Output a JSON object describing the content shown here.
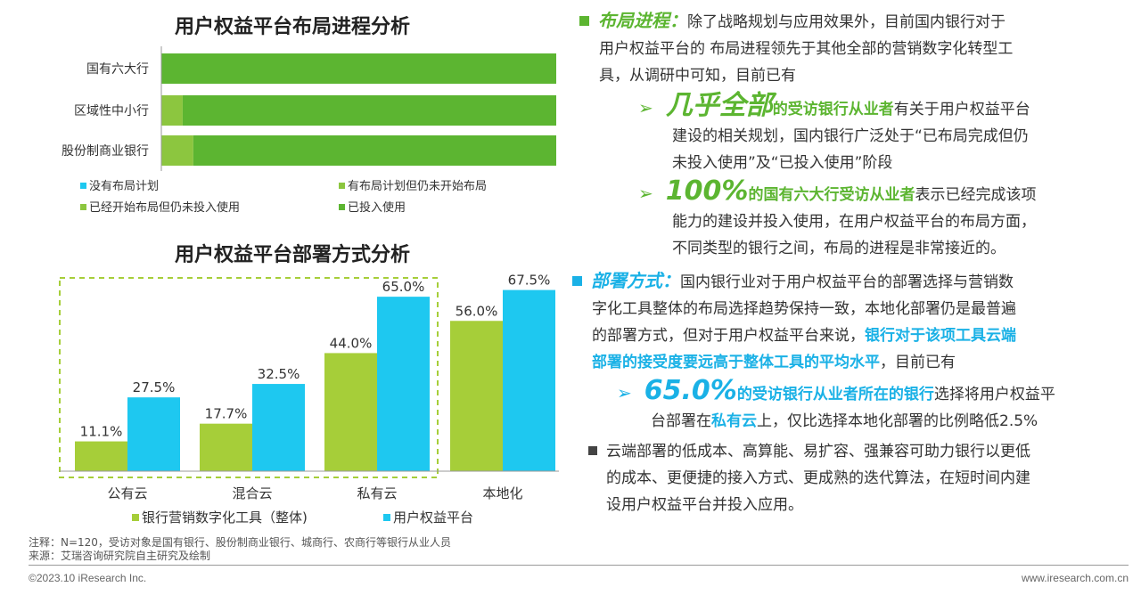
{
  "colors": {
    "green_light": "#8cc63f",
    "green_dark": "#5cb531",
    "lime": "#a6ce39",
    "blue": "#1ec8f0",
    "dashed_border": "#a6ce39"
  },
  "chart_data": [
    {
      "type": "bar",
      "orientation": "horizontal-stacked",
      "title": "用户权益平台布局进程分析",
      "categories": [
        "国有六大行",
        "区域性中小行",
        "股份制商业银行"
      ],
      "series": [
        {
          "name": "没有布局计划",
          "color": "#1ec8f0",
          "values": [
            0,
            0,
            0
          ]
        },
        {
          "name": "有布局计划但仍未开始布局",
          "color": "#8cc63f",
          "values": [
            0,
            0,
            0
          ]
        },
        {
          "name": "已经开始布局但仍未投入使用",
          "color": "#8cc63f",
          "values": [
            0,
            5.4,
            8.1
          ]
        },
        {
          "name": "已投入使用",
          "color": "#5cb531",
          "values": [
            100,
            94.6,
            91.9
          ]
        }
      ],
      "xlim": [
        0,
        100
      ],
      "grid": false
    },
    {
      "type": "bar",
      "title": "用户权益平台部署方式分析",
      "categories": [
        "公有云",
        "混合云",
        "私有云",
        "本地化"
      ],
      "series": [
        {
          "name": "银行营销数字化工具（整体)",
          "color": "#a6ce39",
          "values": [
            11.1,
            17.7,
            44.0,
            56.0
          ],
          "labels": [
            "11.1%",
            "17.7%",
            "44.0%",
            "56.0%"
          ]
        },
        {
          "name": "用户权益平台",
          "color": "#1ec8f0",
          "values": [
            27.5,
            32.5,
            65.0,
            67.5
          ],
          "labels": [
            "27.5%",
            "32.5%",
            "65.0%",
            "67.5%"
          ]
        }
      ],
      "ylim": [
        0,
        75
      ],
      "grid": false
    }
  ],
  "right": {
    "p1_title": "布局进程：",
    "p1_l1": "除了战略规划与应用效果外，目前国内银行对于",
    "p1_l2": "用户权益平台的 布局进程领先于其他全部的营销数字化转型工",
    "p1_l3": "具，从调研中可知，目前已有",
    "b1_big": "几乎全部",
    "b1_bold": "的受访银行从业者",
    "b1_l1": "有关于用户权益平台",
    "b1_l2": "建设的相关规划，国内银行广泛处于“已布局完成但仍",
    "b1_l3": "未投入使用”及“已投入使用”阶段",
    "b2_big": "100%",
    "b2_bold": "的国有六大行受访从业者",
    "b2_l1": "表示已经完成该项",
    "b2_l2": "能力的建设并投入使用，在用户权益平台的布局方面，",
    "b2_l3": "不同类型的银行之间，布局的进程是非常接近的。",
    "p2_title": "部署方式：",
    "p2_l1": "国内银行业对于用户权益平台的部署选择与营销数",
    "p2_l2": "字化工具整体的布局选择趋势保持一致，本地化部署仍是最普遍",
    "p2_l3a": "的部署方式，但对于用户权益平台来说，",
    "p2_l3b": "银行对于该项工具云端",
    "p2_l4a": "部署的接受度要远高于整体工具的平均水平",
    "p2_l4b": "，目前已有",
    "b3_big": "65.0%",
    "b3_bold": "的受访银行从业者所在的银行",
    "b3_l1": "选择将用户权益平",
    "b3_l2a": "台部署在",
    "b3_l2b": "私有云",
    "b3_l2c": "上，仅比选择本地化部署的比例略低2.5%",
    "p3_l1": "云端部署的低成本、高算能、易扩容、强兼容可助力银行以更低",
    "p3_l2": "的成本、更便捷的接入方式、更成熟的迭代算法，在短时间内建",
    "p3_l3": "设用户权益平台并投入应用。",
    "arrow": "➢",
    "square": "■"
  },
  "footer": {
    "note": "注释：N=120，受访对象是国有银行、股份制商业银行、城商行、农商行等银行从业人员",
    "source": "来源：艾瑞咨询研究院自主研究及绘制",
    "copyright": "©2023.10 iResearch Inc.",
    "website": "www.iresearch.com.cn"
  }
}
